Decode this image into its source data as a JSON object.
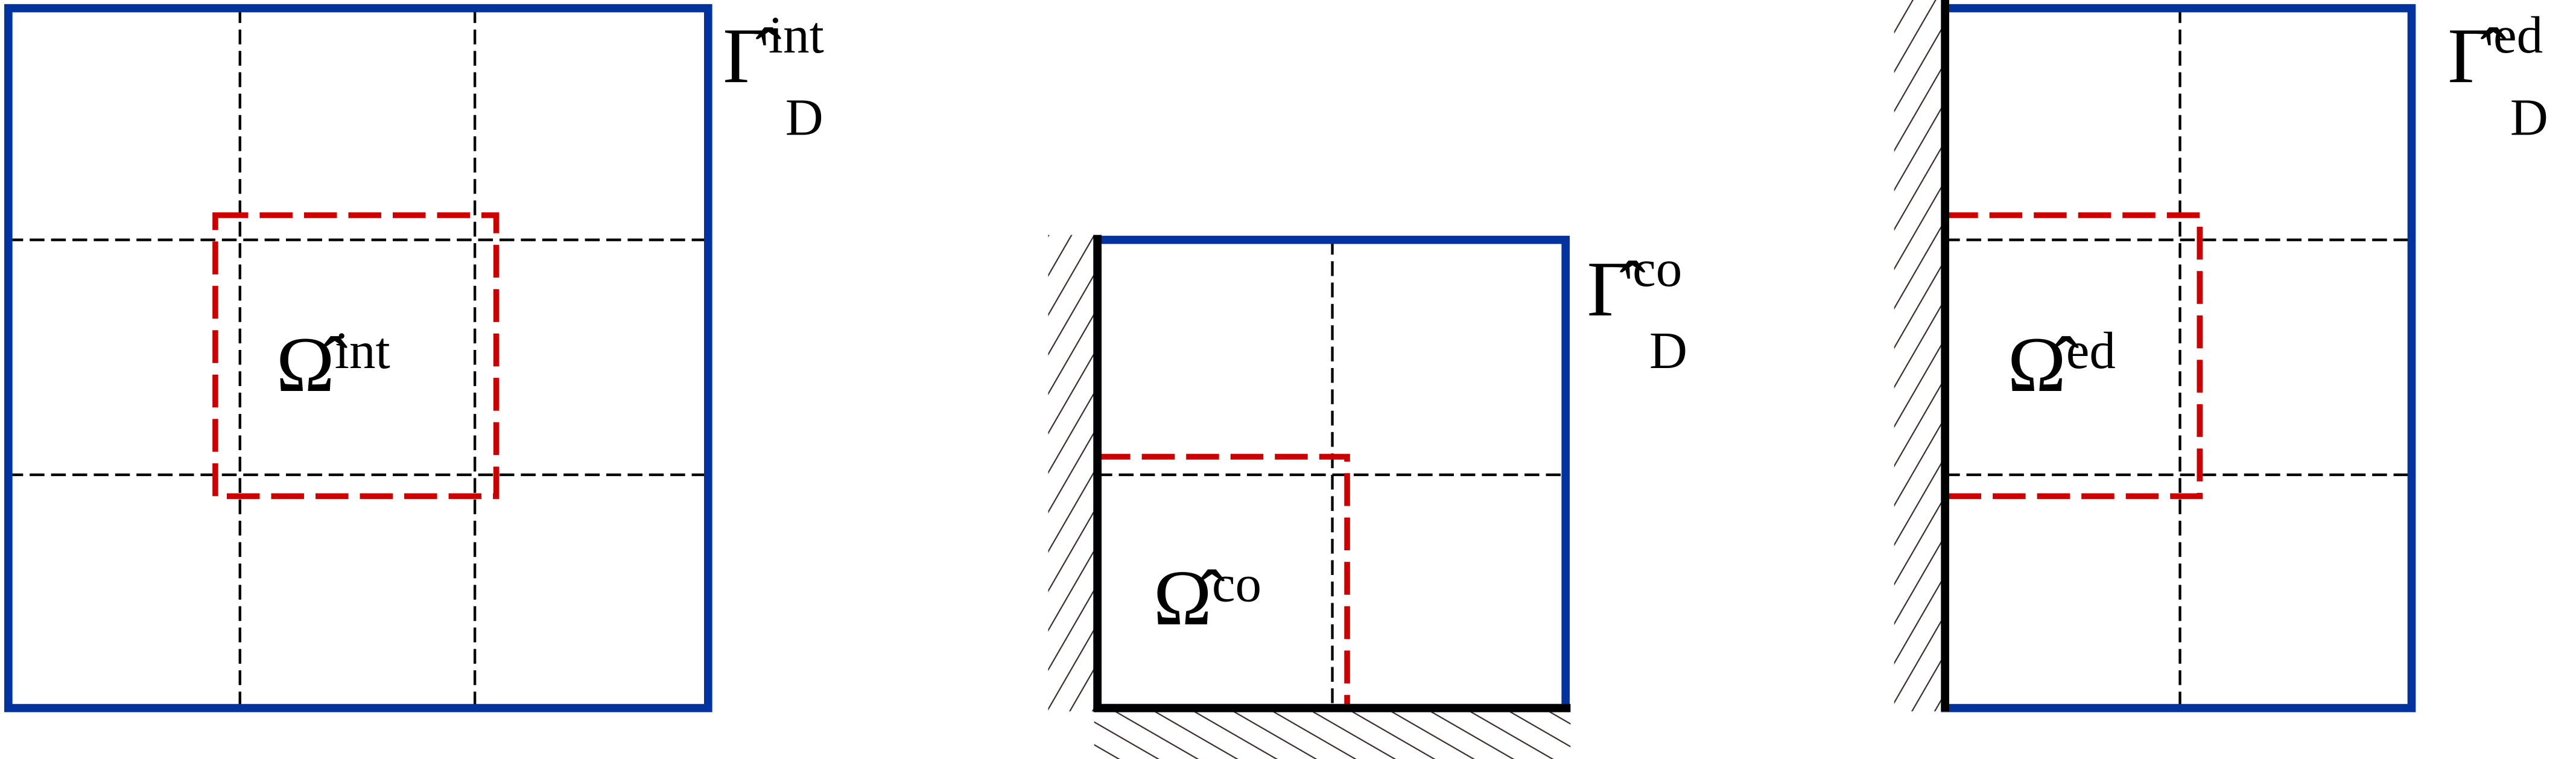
{
  "panels": [
    {
      "domain": {
        "symbol": "Ω̂",
        "superscript": "int"
      },
      "boundary": {
        "symbol": "Γ̂",
        "superscript": "int",
        "subscript": "D"
      }
    },
    {
      "domain": {
        "symbol": "Ω̂",
        "superscript": "co"
      },
      "boundary": {
        "symbol": "Γ̂",
        "superscript": "co",
        "subscript": "D"
      }
    },
    {
      "domain": {
        "symbol": "Ω̂",
        "superscript": "ed"
      },
      "boundary": {
        "symbol": "Γ̂",
        "superscript": "ed",
        "subscript": "D"
      }
    }
  ]
}
